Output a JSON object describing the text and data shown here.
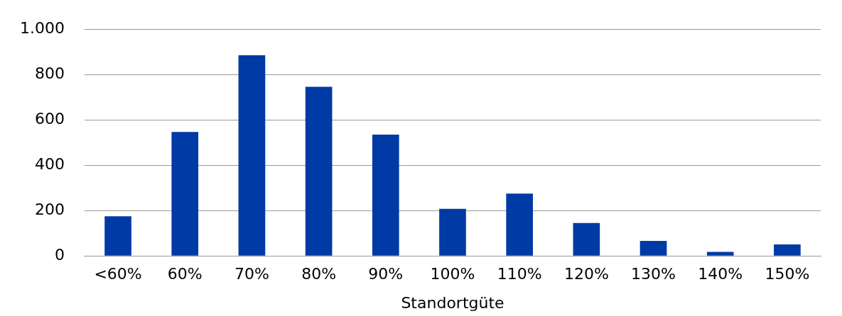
{
  "chart_data": {
    "type": "bar",
    "xlabel": "Standortgüte",
    "categories": [
      "<60%",
      "60%",
      "70%",
      "80%",
      "90%",
      "100%",
      "110%",
      "120%",
      "130%",
      "140%",
      "150%"
    ],
    "values": [
      175,
      547,
      885,
      746,
      535,
      208,
      275,
      145,
      66,
      18,
      51
    ],
    "color": "#003aa5",
    "ylim": [
      0,
      1000
    ],
    "yticks": [
      0,
      200,
      400,
      600,
      800,
      {
        "value": 1000,
        "label": "1.000"
      }
    ],
    "grid": "y",
    "legend": false
  }
}
